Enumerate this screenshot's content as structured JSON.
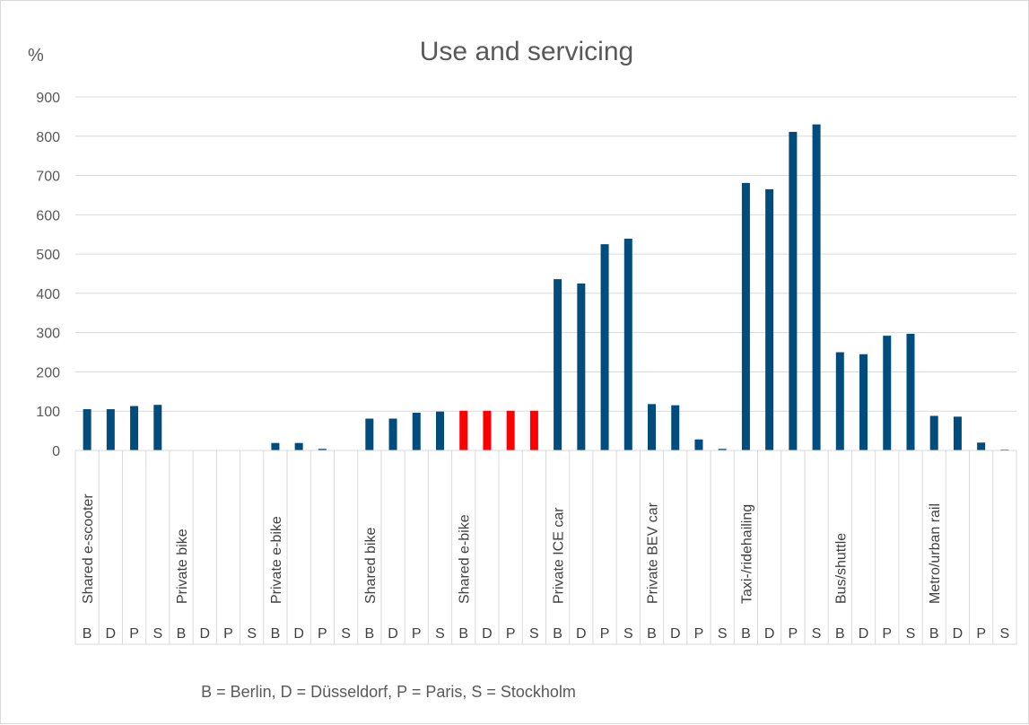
{
  "chart_data": {
    "type": "bar",
    "title": "Use and servicing",
    "ylabel": "%",
    "xlabel": "",
    "ylim": [
      0,
      900
    ],
    "yticks": [
      "0",
      "100",
      "200",
      "300",
      "400",
      "500",
      "600",
      "700",
      "800",
      "900"
    ],
    "grid": true,
    "legend": "none",
    "cities": [
      "B",
      "D",
      "P",
      "S"
    ],
    "groups": [
      {
        "label": "Shared e-scooter",
        "values": [
          105,
          105,
          113,
          116
        ]
      },
      {
        "label": "Private bike",
        "values": [
          0,
          0,
          0,
          0
        ]
      },
      {
        "label": "Private e-bike",
        "values": [
          19,
          19,
          4,
          0
        ]
      },
      {
        "label": "Shared bike",
        "values": [
          81,
          81,
          96,
          99
        ]
      },
      {
        "label": "Shared e-bike",
        "values": [
          101,
          101,
          101,
          101
        ]
      },
      {
        "label": "Private ICE car",
        "values": [
          436,
          425,
          525,
          539
        ]
      },
      {
        "label": "Private BEV car",
        "values": [
          118,
          115,
          28,
          4
        ]
      },
      {
        "label": "Taxi-/ridehailing",
        "values": [
          681,
          665,
          811,
          830
        ]
      },
      {
        "label": "Bus/shuttle",
        "values": [
          250,
          245,
          292,
          297
        ]
      },
      {
        "label": "Metro/urban rail",
        "values": [
          88,
          86,
          20,
          1
        ]
      }
    ],
    "colors": {
      "default": "#004c7c",
      "highlight": "#ff0000"
    },
    "highlight_group": "Shared e-bike",
    "footnote": "B = Berlin, D = Düsseldorf, P = Paris, S = Stockholm"
  }
}
